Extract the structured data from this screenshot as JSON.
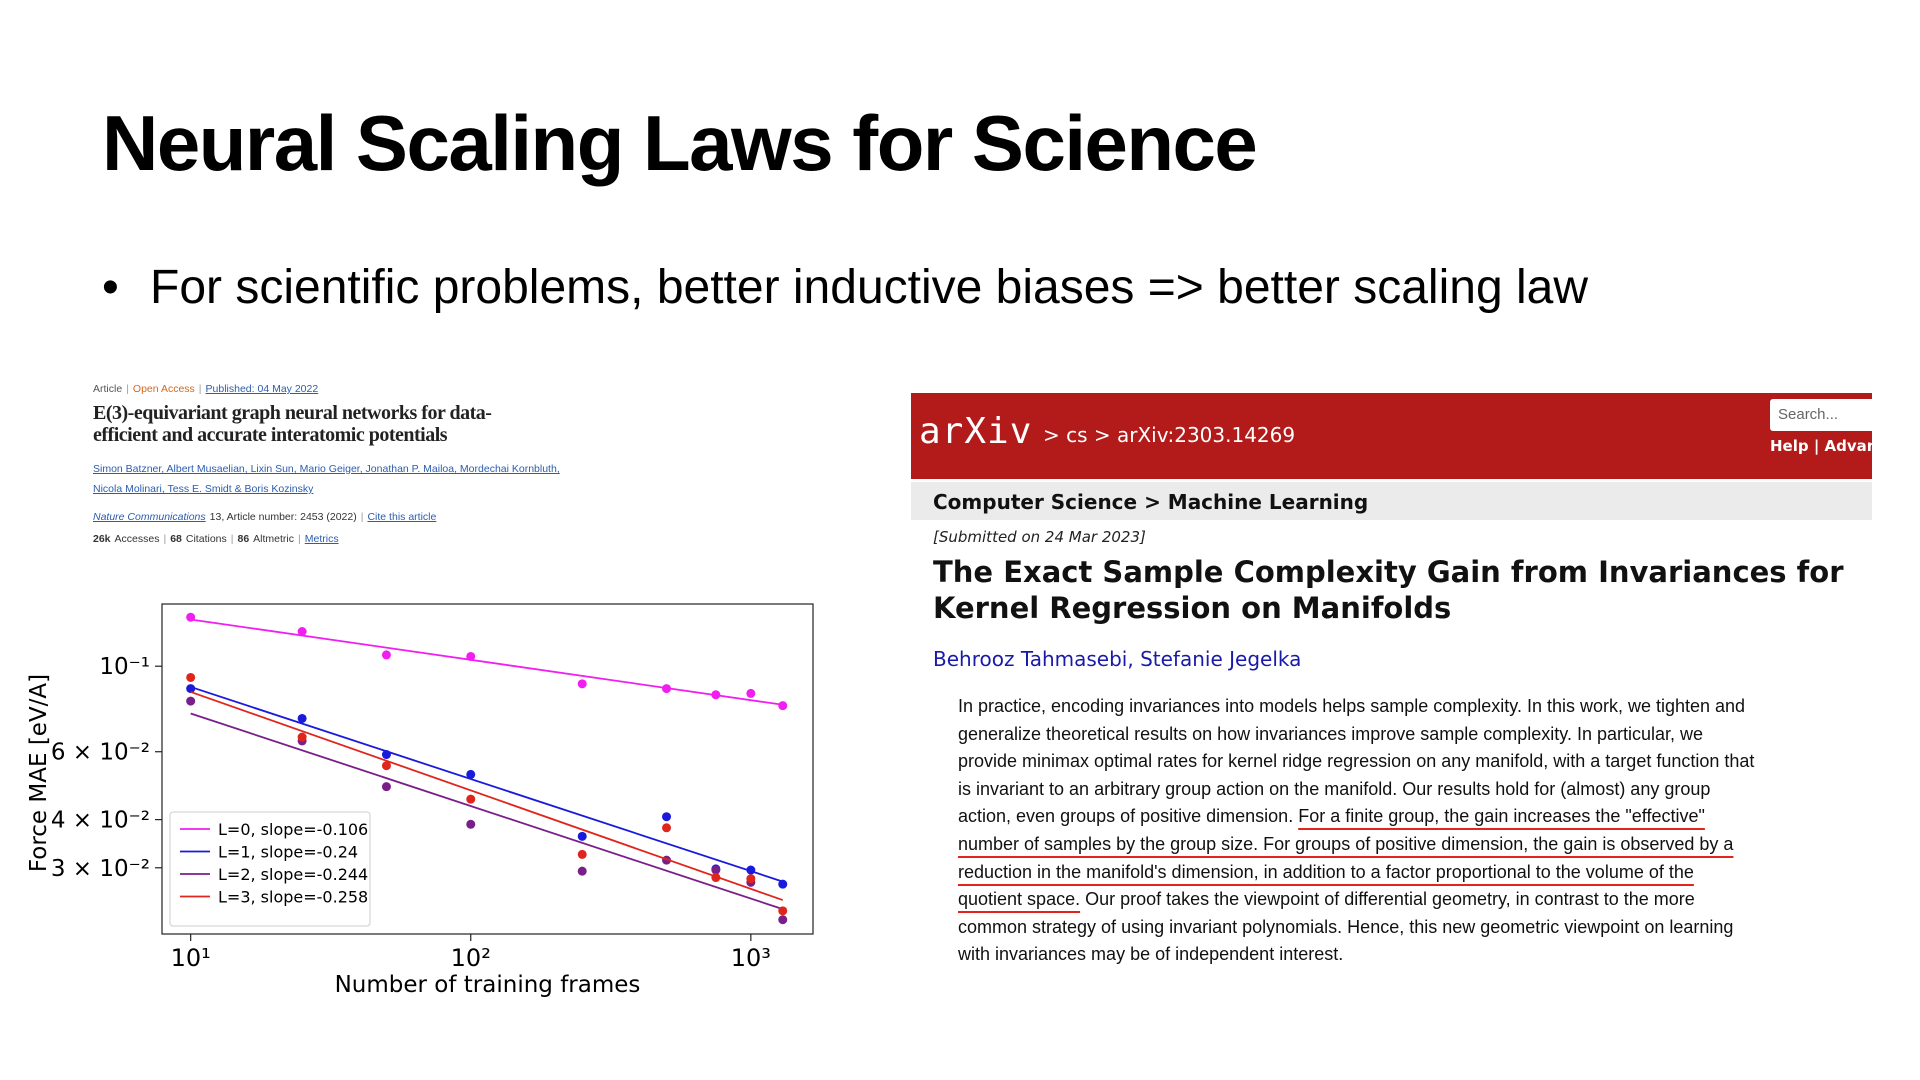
{
  "slide": {
    "title": "Neural Scaling Laws for Science",
    "bullet": "For scientific problems, better inductive biases => better scaling law"
  },
  "left_paper": {
    "separator": "|",
    "meta": [
      "Article",
      "Open Access",
      "Published: 04 May 2022"
    ],
    "title_lines": [
      "E(3)-equivariant graph neural networks for data-",
      "efficient and accurate interatomic potentials"
    ],
    "author_lines": [
      "Simon Batzner, Albert Musaelian, Lixin Sun, Mario Geiger, Jonathan P. Mailoa, Mordechai Kornbluth,",
      "Nicola Molinari, Tess E. Smidt & Boris Kozinsky"
    ],
    "journal": "Nature Communications",
    "journal_detail": "13, Article number: 2453 (2022)",
    "cite": "Cite this article",
    "metrics": [
      {
        "count": "26k",
        "label": "Accesses"
      },
      {
        "count": "68",
        "label": "Citations"
      },
      {
        "count": "86",
        "label": "Altmetric"
      }
    ],
    "metrics_link": "Metrics"
  },
  "chart_data": {
    "type": "scatter",
    "fit": true,
    "xlabel": "Number of training frames",
    "ylabel": "Force MAE [eV/A]",
    "xlog": true,
    "ylog": true,
    "xlim": [
      7.9,
      1667
    ],
    "ylim": [
      0.0202,
      0.145
    ],
    "xticks": [
      {
        "value": 10,
        "label": "10¹"
      },
      {
        "value": 100,
        "label": "10²"
      },
      {
        "value": 1000,
        "label": "10³"
      }
    ],
    "yticks": [
      {
        "value": 0.1,
        "label": "10⁻¹"
      },
      {
        "value": 0.06,
        "label": "6 × 10⁻²"
      },
      {
        "value": 0.04,
        "label": "4 × 10⁻²"
      },
      {
        "value": 0.03,
        "label": "3 × 10⁻²"
      }
    ],
    "legend": "lower left",
    "x": [
      10,
      25,
      50,
      100,
      250,
      500,
      750,
      1000,
      1300
    ],
    "series": [
      {
        "name": "L=0, slope=-0.106",
        "color": "#f01ef0",
        "values": [
          0.134,
          0.123,
          0.107,
          0.106,
          0.09,
          0.0875,
          0.0843,
          0.085,
          0.079
        ]
      },
      {
        "name": "L=1, slope=-0.24",
        "color": "#1a1adc",
        "values": [
          0.0875,
          0.0732,
          0.059,
          0.0524,
          0.0362,
          0.0407,
          0.0298,
          0.0296,
          0.0272
        ]
      },
      {
        "name": "L=2, slope=-0.244",
        "color": "#7a1f8a",
        "values": [
          0.0812,
          0.064,
          0.0487,
          0.0389,
          0.0294,
          0.0314,
          0.0296,
          0.0275,
          0.022
        ]
      },
      {
        "name": "L=3, slope=-0.258",
        "color": "#e0261c",
        "values": [
          0.0935,
          0.0655,
          0.0552,
          0.0452,
          0.0325,
          0.0381,
          0.0283,
          0.0281,
          0.0232
        ]
      }
    ]
  },
  "arxiv": {
    "logo": "arXiv",
    "breadcrumb": "> cs > arXiv:2303.14269",
    "search_placeholder": "Search...",
    "help": "Help | Advanc",
    "subject": "Computer Science > Machine Learning",
    "submitted": "[Submitted on 24 Mar 2023]",
    "title_lines": [
      "The Exact Sample Complexity Gain from Invariances for",
      "Kernel Regression on Manifolds"
    ],
    "authors": "Behrooz Tahmasebi, Stefanie Jegelka",
    "abstract_lines": [
      [
        {
          "text": "In practice, encoding invariances into models helps sample complexity. In this work, we tighten and",
          "underline": false
        }
      ],
      [
        {
          "text": "generalize theoretical results on how invariances improve sample complexity. In particular, we",
          "underline": false
        }
      ],
      [
        {
          "text": "provide minimax optimal rates for kernel ridge regression on any manifold, with a target function that",
          "underline": false
        }
      ],
      [
        {
          "text": "is invariant to an arbitrary group action on the manifold. Our results hold for (almost) any group",
          "underline": false
        }
      ],
      [
        {
          "text": "action, even groups of positive dimension. ",
          "underline": false
        },
        {
          "text": "For a finite group, the gain increases the \"effective\"",
          "underline": true
        }
      ],
      [
        {
          "text": "number of samples by the group size. For groups of positive dimension, the gain is observed by a",
          "underline": true
        }
      ],
      [
        {
          "text": "reduction in the manifold's dimension, in addition to a factor proportional to the volume of the",
          "underline": true
        }
      ],
      [
        {
          "text": "quotient space.",
          "underline": true
        },
        {
          "text": " Our proof takes the viewpoint of differential geometry, in contrast to the more",
          "underline": false
        }
      ],
      [
        {
          "text": "common strategy of using invariant polynomials. Hence, this new geometric viewpoint on learning",
          "underline": false
        }
      ],
      [
        {
          "text": "with invariances may be of independent interest.",
          "underline": false
        }
      ]
    ]
  }
}
